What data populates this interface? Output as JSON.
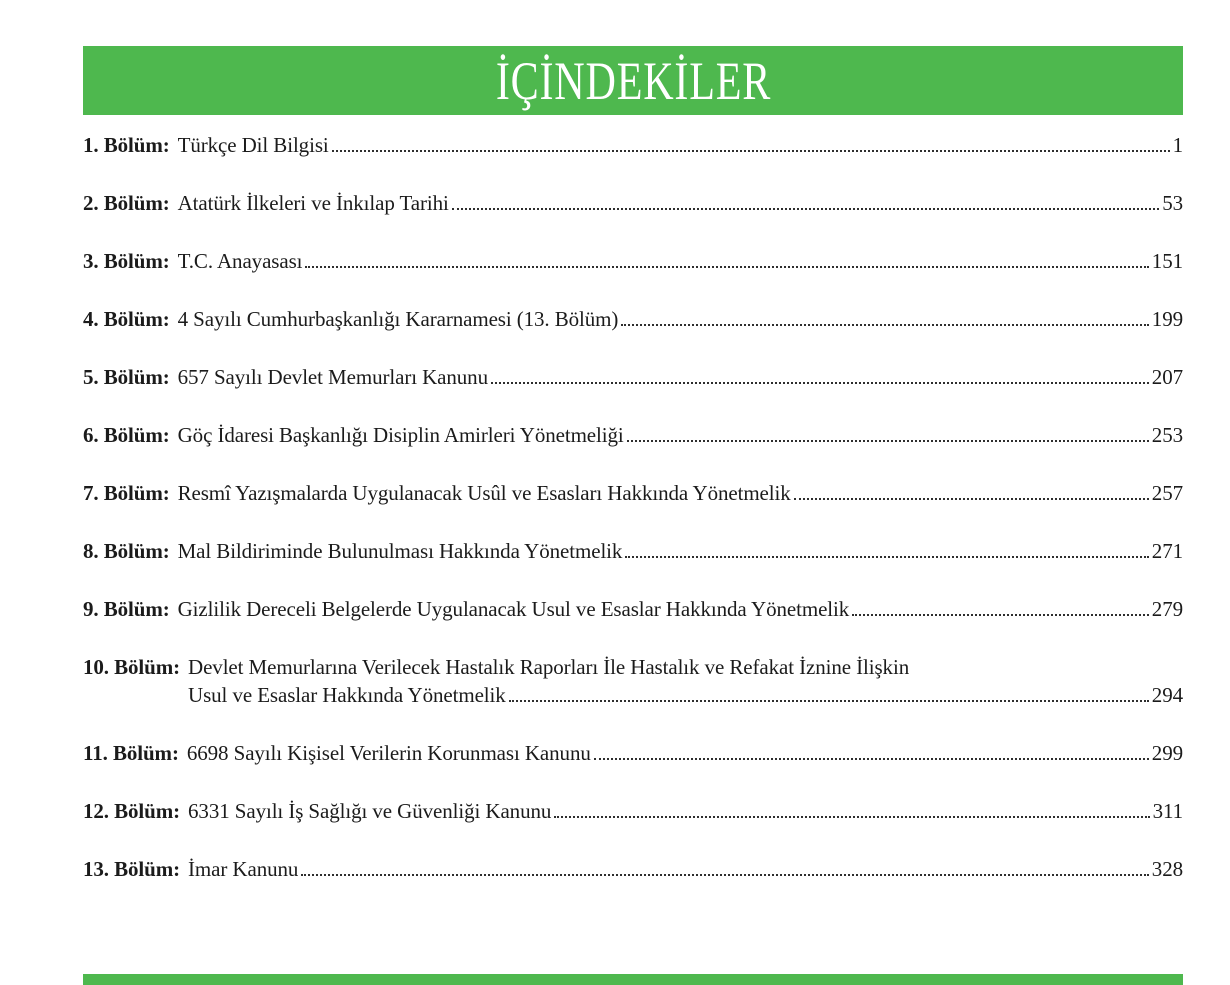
{
  "header": {
    "title": "İÇİNDEKİLER"
  },
  "theme": {
    "accent_green": "#4eb84e",
    "text_color": "#1b1b1b",
    "page_background": "#ffffff"
  },
  "toc": {
    "entries": [
      {
        "label": "1. Bölüm:",
        "title": "Türkçe Dil Bilgisi",
        "page": "1"
      },
      {
        "label": "2. Bölüm:",
        "title": "Atatürk İlkeleri ve İnkılap Tarihi",
        "page": "53"
      },
      {
        "label": "3. Bölüm:",
        "title": "T.C. Anayasası",
        "page": "151"
      },
      {
        "label": "4. Bölüm:",
        "title": "4 Sayılı Cumhurbaşkanlığı Kararnamesi (13. Bölüm)",
        "page": "199"
      },
      {
        "label": "5. Bölüm:",
        "title": "657 Sayılı Devlet Memurları Kanunu",
        "page": "207"
      },
      {
        "label": "6. Bölüm:",
        "title": "Göç İdaresi Başkanlığı Disiplin Amirleri Yönetmeliği",
        "page": "253"
      },
      {
        "label": "7. Bölüm:",
        "title": "Resmî Yazışmalarda Uygulanacak Usûl ve Esasları Hakkında Yönetmelik",
        "page": "257"
      },
      {
        "label": "8. Bölüm:",
        "title": "Mal Bildiriminde Bulunulması Hakkında Yönetmelik",
        "page": "271"
      },
      {
        "label": "9. Bölüm:",
        "title": "Gizlilik Dereceli Belgelerde Uygulanacak Usul ve Esaslar Hakkında Yönetmelik",
        "page": "279"
      },
      {
        "label": "10. Bölüm:",
        "title_line1": "Devlet Memurlarına Verilecek Hastalık Raporları İle Hastalık ve Refakat İznine İlişkin",
        "title_line2": "Usul ve Esaslar Hakkında Yönetmelik",
        "page": "294"
      },
      {
        "label": "11. Bölüm:",
        "title": "6698 Sayılı Kişisel Verilerin Korunması Kanunu",
        "page": "299"
      },
      {
        "label": "12. Bölüm:",
        "title": "6331 Sayılı İş Sağlığı ve Güvenliği Kanunu",
        "page": "311"
      },
      {
        "label": "13. Bölüm:",
        "title": "İmar Kanunu",
        "page": "328"
      }
    ]
  }
}
